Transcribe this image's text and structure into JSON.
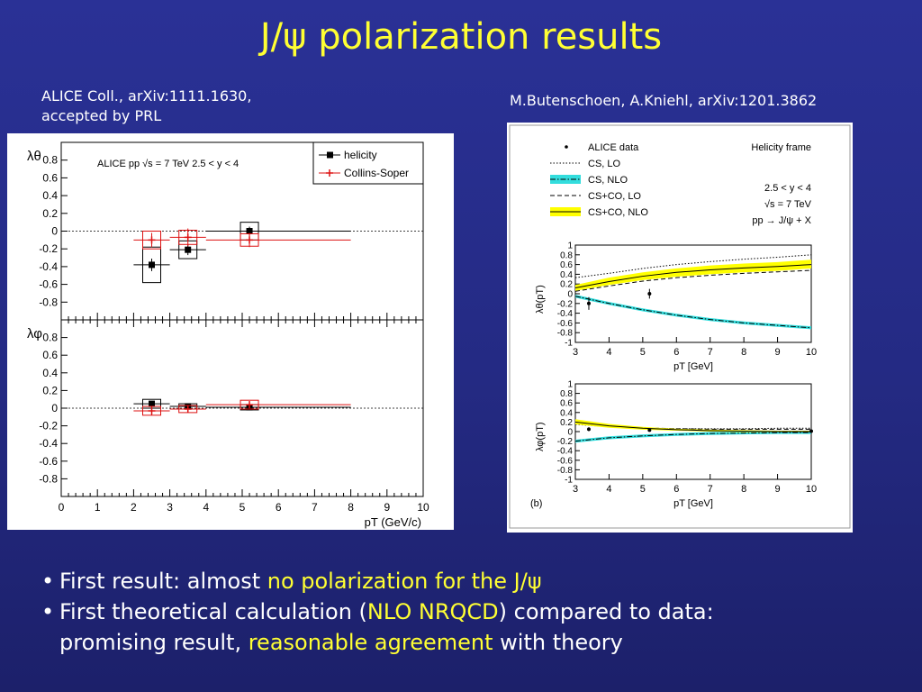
{
  "slide": {
    "title": "J/ψ polarization results",
    "left_citation_line1": "ALICE Coll., arXiv:1111.1630,",
    "left_citation_line2": "accepted by PRL",
    "right_citation": "M.Butenschoen, A.Kniehl, arXiv:1201.3862",
    "bullets": [
      {
        "mark": "•",
        "parts": [
          "First result: almost ",
          "no polarization for the J/ψ",
          ""
        ]
      },
      {
        "mark": "•",
        "parts": [
          "First theoretical calculation (",
          "NLO NRQCD",
          ") compared to data:"
        ],
        "line2_parts": [
          "promising result, ",
          "reasonable agreement",
          " with theory"
        ]
      }
    ]
  },
  "colors": {
    "background": "#252b86",
    "title": "#ffff33",
    "highlight": "#ffff33",
    "text": "#ffffff",
    "helicity": "#000000",
    "collins_soper": "#dd1111",
    "band": "#ffff00",
    "cs_band": "#33dddd"
  },
  "chart_data": [
    {
      "type": "scatter",
      "panel": "lambda_theta",
      "ylabel": "λθ",
      "annotation": "ALICE  pp  √s = 7 TeV    2.5 < y < 4",
      "xlim": [
        0,
        10
      ],
      "ylim": [
        -1.0,
        1.0
      ],
      "yticks": [
        "0.8",
        "0.6",
        "0.4",
        "0.2",
        "0",
        "-0.2",
        "-0.4",
        "-0.6",
        "-0.8"
      ],
      "legend": [
        "helicity",
        "Collins-Soper"
      ],
      "legend_position": "top-right",
      "series": [
        {
          "name": "helicity",
          "x": [
            2.5,
            3.5,
            5.2
          ],
          "xerr": [
            [
              2,
              3
            ],
            [
              3,
              4
            ],
            [
              4,
              8
            ]
          ],
          "y": [
            -0.38,
            -0.21,
            0.0
          ],
          "yerr": [
            0.07,
            0.06,
            0.05
          ],
          "syst": [
            0.2,
            0.1,
            0.1
          ]
        },
        {
          "name": "Collins-Soper",
          "x": [
            2.5,
            3.5,
            5.2
          ],
          "xerr": [
            [
              2,
              3
            ],
            [
              3,
              4
            ],
            [
              4,
              8
            ]
          ],
          "y": [
            -0.1,
            -0.07,
            -0.1
          ],
          "yerr": [
            0.08,
            0.1,
            0.08
          ],
          "syst": [
            0.1,
            0.08,
            0.07
          ]
        }
      ]
    },
    {
      "type": "scatter",
      "panel": "lambda_phi",
      "ylabel": "λφ",
      "xlabel": "pT (GeV/c)",
      "xlim": [
        0,
        10
      ],
      "ylim": [
        -1.0,
        1.0
      ],
      "xticks": [
        "0",
        "1",
        "2",
        "3",
        "4",
        "5",
        "6",
        "7",
        "8",
        "9",
        "10"
      ],
      "yticks": [
        "0.8",
        "0.6",
        "0.4",
        "0.2",
        "0",
        "-0.2",
        "-0.4",
        "-0.6",
        "-0.8"
      ],
      "series": [
        {
          "name": "helicity",
          "x": [
            2.5,
            3.5,
            5.2
          ],
          "xerr": [
            [
              2,
              3
            ],
            [
              3,
              4
            ],
            [
              4,
              8
            ]
          ],
          "y": [
            0.05,
            0.02,
            0.01
          ],
          "yerr": [
            0.03,
            0.02,
            0.02
          ],
          "syst": [
            0.05,
            0.03,
            0.03
          ]
        },
        {
          "name": "Collins-Soper",
          "x": [
            2.5,
            3.5,
            5.2
          ],
          "xerr": [
            [
              2,
              3
            ],
            [
              3,
              4
            ],
            [
              4,
              8
            ]
          ],
          "y": [
            -0.03,
            -0.01,
            0.04
          ],
          "yerr": [
            0.05,
            0.03,
            0.04
          ],
          "syst": [
            0.05,
            0.04,
            0.05
          ]
        }
      ]
    },
    {
      "type": "line",
      "panel": "theory_legend",
      "legend": [
        "ALICE data",
        "CS, LO",
        "CS, NLO",
        "CS+CO, LO",
        "CS+CO, NLO"
      ],
      "frame_label": "Helicity frame",
      "annotations": [
        "2.5 < y < 4",
        "√s = 7 TeV",
        "pp → J/ψ + X"
      ]
    },
    {
      "type": "line",
      "panel": "theory_lambda_theta",
      "ylabel": "λθ(pT)",
      "xlabel": "pT [GeV]",
      "xlim": [
        3,
        10
      ],
      "ylim": [
        -1,
        1
      ],
      "xticks": [
        "3",
        "4",
        "5",
        "6",
        "7",
        "8",
        "9",
        "10"
      ],
      "yticks": [
        "1",
        "0.8",
        "0.6",
        "0.4",
        "0.2",
        "0",
        "-0.2",
        "-0.4",
        "-0.6",
        "-0.8",
        "-1"
      ],
      "x": [
        3,
        4,
        5,
        6,
        7,
        8,
        9,
        10
      ],
      "series": [
        {
          "name": "CS, LO",
          "values": [
            0.33,
            0.42,
            0.52,
            0.6,
            0.66,
            0.71,
            0.75,
            0.8
          ]
        },
        {
          "name": "CS, NLO",
          "values": [
            -0.05,
            -0.2,
            -0.33,
            -0.44,
            -0.53,
            -0.6,
            -0.65,
            -0.7
          ]
        },
        {
          "name": "CS+CO, LO",
          "values": [
            0.05,
            0.16,
            0.26,
            0.33,
            0.38,
            0.42,
            0.45,
            0.48
          ]
        },
        {
          "name": "CS+CO, NLO",
          "values": [
            0.12,
            0.25,
            0.36,
            0.44,
            0.49,
            0.53,
            0.56,
            0.6
          ],
          "band_low": [
            0.06,
            0.18,
            0.28,
            0.35,
            0.4,
            0.44,
            0.47,
            0.52
          ],
          "band_high": [
            0.18,
            0.33,
            0.44,
            0.52,
            0.58,
            0.62,
            0.65,
            0.7
          ]
        },
        {
          "name": "ALICE data",
          "x": [
            3.4,
            5.2
          ],
          "values": [
            -0.2,
            0.0
          ],
          "yerr": [
            0.13,
            0.1
          ]
        }
      ]
    },
    {
      "type": "line",
      "panel": "theory_lambda_phi",
      "ylabel": "λφ(pT)",
      "xlabel": "pT [GeV]",
      "panel_label": "(b)",
      "xlim": [
        3,
        10
      ],
      "ylim": [
        -1,
        1
      ],
      "xticks": [
        "3",
        "4",
        "5",
        "6",
        "7",
        "8",
        "9",
        "10"
      ],
      "yticks": [
        "1",
        "0.8",
        "0.6",
        "0.4",
        "0.2",
        "0",
        "-0.2",
        "-0.4",
        "-0.6",
        "-0.8",
        "-1"
      ],
      "x": [
        3,
        4,
        5,
        6,
        7,
        8,
        9,
        10
      ],
      "series": [
        {
          "name": "CS, LO",
          "values": [
            0.15,
            0.1,
            0.07,
            0.06,
            0.06,
            0.06,
            0.07,
            0.07
          ]
        },
        {
          "name": "CS, NLO",
          "values": [
            -0.2,
            -0.13,
            -0.09,
            -0.06,
            -0.04,
            -0.03,
            -0.02,
            -0.02
          ]
        },
        {
          "name": "CS+CO, LO",
          "values": [
            0.18,
            0.12,
            0.08,
            0.06,
            0.05,
            0.05,
            0.05,
            0.05
          ]
        },
        {
          "name": "CS+CO, NLO",
          "values": [
            0.2,
            0.12,
            0.07,
            0.04,
            0.02,
            0.01,
            0.0,
            0.0
          ],
          "band_low": [
            0.15,
            0.08,
            0.04,
            0.02,
            0.0,
            -0.01,
            -0.01,
            -0.01
          ],
          "band_high": [
            0.26,
            0.16,
            0.1,
            0.06,
            0.04,
            0.03,
            0.02,
            0.02
          ]
        },
        {
          "name": "ALICE data",
          "x": [
            3.4,
            5.2,
            10
          ],
          "values": [
            0.05,
            0.03,
            0.01
          ],
          "yerr": [
            0.04,
            0.03,
            0.02
          ]
        }
      ]
    }
  ]
}
